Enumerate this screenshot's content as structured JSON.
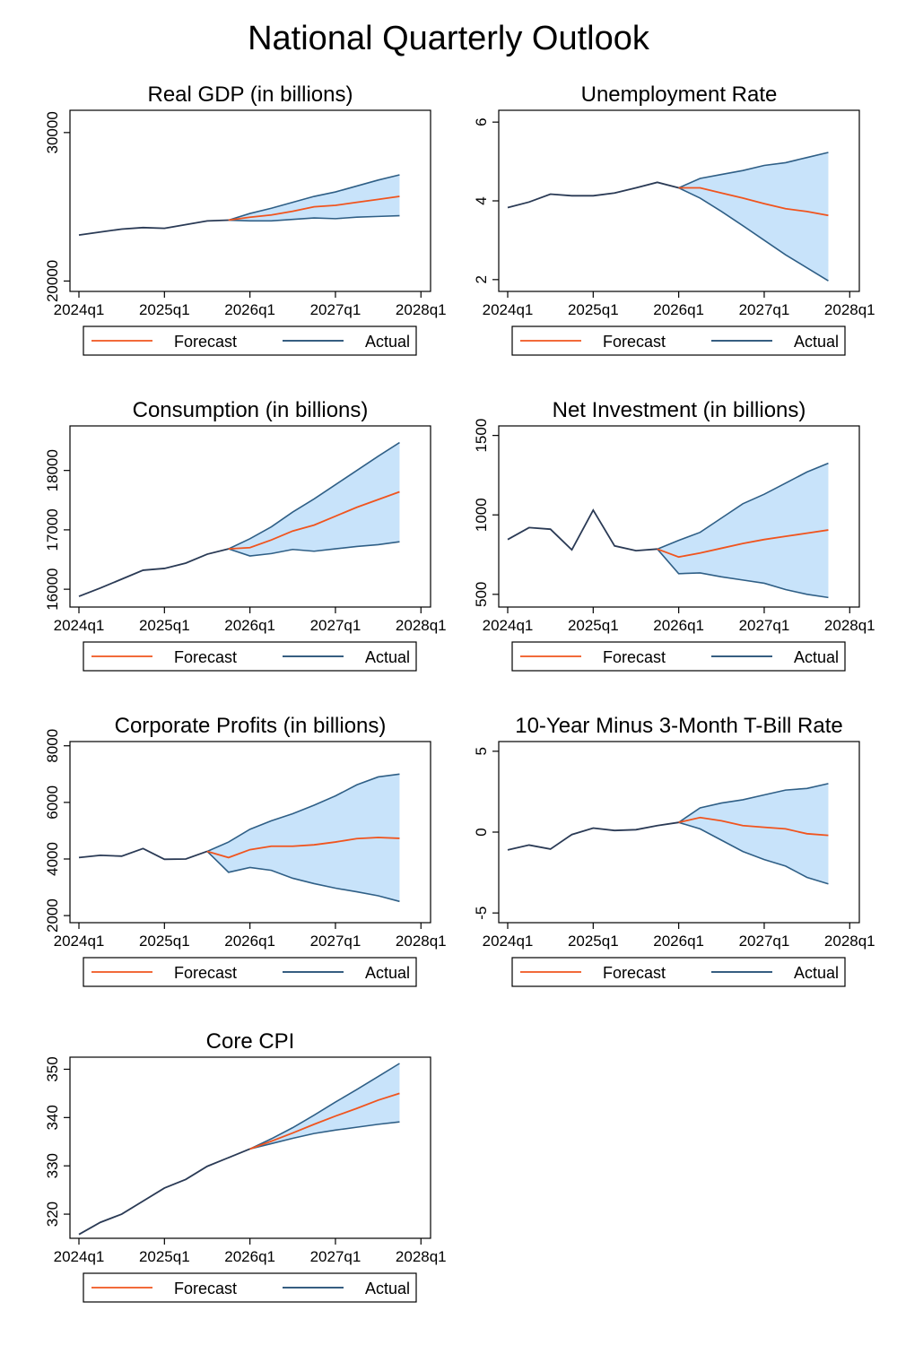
{
  "title": "National Quarterly Outlook",
  "colors": {
    "forecast": "#f0541e",
    "actual": "#1a476f",
    "band": "#c8e3fa",
    "band_edge": "#2f5f86",
    "frame": "#000000"
  },
  "legend": {
    "forecast_label": "Forecast",
    "actual_label": "Actual"
  },
  "chart_data": [
    {
      "type": "line",
      "title": "Real GDP (in billions)",
      "x_ticks": [
        "2024q1",
        "2025q1",
        "2026q1",
        "2027q1",
        "2028q1"
      ],
      "y_ticks": [
        20000,
        30000
      ],
      "ylim": [
        19300,
        31500
      ],
      "history": {
        "x": [
          "2024q1",
          "2024q2",
          "2024q3",
          "2024q4",
          "2025q1",
          "2025q2",
          "2025q3",
          "2025q4"
        ],
        "y": [
          23100,
          23300,
          23500,
          23600,
          23550,
          23800,
          24050,
          24100
        ]
      },
      "forecast": {
        "x": [
          "2025q4",
          "2026q1",
          "2026q2",
          "2026q3",
          "2026q4",
          "2027q1",
          "2027q2",
          "2027q3",
          "2027q4"
        ],
        "y": [
          24100,
          24300,
          24450,
          24700,
          25000,
          25100,
          25300,
          25500,
          25700
        ]
      },
      "upper": [
        24100,
        24550,
        24900,
        25300,
        25700,
        26000,
        26400,
        26800,
        27150
      ],
      "lower": [
        24100,
        24050,
        24050,
        24150,
        24250,
        24200,
        24300,
        24350,
        24400
      ]
    },
    {
      "type": "line",
      "title": "Unemployment Rate",
      "x_ticks": [
        "2024q1",
        "2025q1",
        "2026q1",
        "2027q1",
        "2028q1"
      ],
      "y_ticks": [
        2,
        4,
        6
      ],
      "ylim": [
        1.7,
        6.3
      ],
      "history": {
        "x": [
          "2024q1",
          "2024q2",
          "2024q3",
          "2024q4",
          "2025q1",
          "2025q2",
          "2025q3",
          "2025q4",
          "2026q1"
        ],
        "y": [
          3.83,
          3.97,
          4.17,
          4.13,
          4.13,
          4.2,
          4.33,
          4.47,
          4.33
        ]
      },
      "forecast": {
        "x": [
          "2026q1",
          "2026q2",
          "2026q3",
          "2026q4",
          "2027q1",
          "2027q2",
          "2027q3",
          "2027q4"
        ],
        "y": [
          4.33,
          4.33,
          4.2,
          4.07,
          3.93,
          3.8,
          3.73,
          3.63
        ]
      },
      "upper": [
        4.33,
        4.57,
        4.67,
        4.77,
        4.9,
        4.97,
        5.1,
        5.23
      ],
      "lower": [
        4.33,
        4.07,
        3.73,
        3.37,
        3.0,
        2.63,
        2.3,
        1.97
      ]
    },
    {
      "type": "line",
      "title": "Consumption (in billions)",
      "x_ticks": [
        "2024q1",
        "2025q1",
        "2026q1",
        "2027q1",
        "2028q1"
      ],
      "y_ticks": [
        16000,
        17000,
        18000
      ],
      "ylim": [
        15700,
        18750
      ],
      "history": {
        "x": [
          "2024q1",
          "2024q2",
          "2024q3",
          "2024q4",
          "2025q1",
          "2025q2",
          "2025q3",
          "2025q4"
        ],
        "y": [
          15880,
          16020,
          16170,
          16320,
          16350,
          16440,
          16590,
          16680
        ]
      },
      "forecast": {
        "x": [
          "2025q4",
          "2026q1",
          "2026q2",
          "2026q3",
          "2026q4",
          "2027q1",
          "2027q2",
          "2027q3",
          "2027q4"
        ],
        "y": [
          16680,
          16700,
          16830,
          16980,
          17080,
          17230,
          17380,
          17510,
          17640
        ]
      },
      "upper": [
        16680,
        16850,
        17050,
        17300,
        17520,
        17760,
        18000,
        18240,
        18470
      ],
      "lower": [
        16680,
        16560,
        16600,
        16670,
        16640,
        16680,
        16720,
        16750,
        16800
      ]
    },
    {
      "type": "line",
      "title": "Net Investment (in billions)",
      "x_ticks": [
        "2024q1",
        "2025q1",
        "2026q1",
        "2027q1",
        "2028q1"
      ],
      "y_ticks": [
        500,
        1000,
        1500
      ],
      "ylim": [
        420,
        1560
      ],
      "history": {
        "x": [
          "2024q1",
          "2024q2",
          "2024q3",
          "2024q4",
          "2025q1",
          "2025q2",
          "2025q3",
          "2025q4"
        ],
        "y": [
          845,
          920,
          910,
          780,
          1030,
          805,
          775,
          785
        ]
      },
      "forecast": {
        "x": [
          "2025q4",
          "2026q1",
          "2026q2",
          "2026q3",
          "2026q4",
          "2027q1",
          "2027q2",
          "2027q3",
          "2027q4"
        ],
        "y": [
          785,
          735,
          760,
          790,
          820,
          845,
          865,
          885,
          905
        ]
      },
      "upper": [
        785,
        840,
        890,
        980,
        1070,
        1130,
        1200,
        1270,
        1325
      ],
      "lower": [
        785,
        630,
        635,
        610,
        590,
        570,
        530,
        500,
        480
      ]
    },
    {
      "type": "line",
      "title": "Corporate Profits (in billions)",
      "x_ticks": [
        "2024q1",
        "2025q1",
        "2026q1",
        "2027q1",
        "2028q1"
      ],
      "y_ticks": [
        2000,
        4000,
        6000,
        8000
      ],
      "ylim": [
        1750,
        8150
      ],
      "history": {
        "x": [
          "2024q1",
          "2024q2",
          "2024q3",
          "2024q4",
          "2025q1",
          "2025q2",
          "2025q3"
        ],
        "y": [
          4050,
          4130,
          4100,
          4370,
          3990,
          4000,
          4270
        ]
      },
      "forecast": {
        "x": [
          "2025q3",
          "2025q4",
          "2026q1",
          "2026q2",
          "2026q3",
          "2026q4",
          "2027q1",
          "2027q2",
          "2027q3",
          "2027q4"
        ],
        "y": [
          4270,
          4050,
          4330,
          4450,
          4450,
          4500,
          4600,
          4720,
          4760,
          4730
        ]
      },
      "upper": [
        4270,
        4600,
        5050,
        5350,
        5600,
        5900,
        6230,
        6620,
        6900,
        7000
      ],
      "lower": [
        4270,
        3530,
        3700,
        3600,
        3320,
        3130,
        2970,
        2840,
        2700,
        2500
      ]
    },
    {
      "type": "line",
      "title": "10-Year Minus 3-Month T-Bill Rate",
      "x_ticks": [
        "2024q1",
        "2025q1",
        "2026q1",
        "2027q1",
        "2028q1"
      ],
      "y_ticks": [
        -5,
        0,
        5
      ],
      "ylim": [
        -5.6,
        5.6
      ],
      "history": {
        "x": [
          "2024q1",
          "2024q2",
          "2024q3",
          "2024q4",
          "2025q1",
          "2025q2",
          "2025q3",
          "2025q4",
          "2026q1"
        ],
        "y": [
          -1.1,
          -0.8,
          -1.05,
          -0.15,
          0.25,
          0.1,
          0.15,
          0.4,
          0.6
        ]
      },
      "forecast": {
        "x": [
          "2026q1",
          "2026q2",
          "2026q3",
          "2026q4",
          "2027q1",
          "2027q2",
          "2027q3",
          "2027q4"
        ],
        "y": [
          0.6,
          0.9,
          0.7,
          0.4,
          0.3,
          0.2,
          -0.1,
          -0.2
        ]
      },
      "upper": [
        0.6,
        1.5,
        1.8,
        2.0,
        2.3,
        2.6,
        2.7,
        3.0
      ],
      "lower": [
        0.6,
        0.2,
        -0.5,
        -1.2,
        -1.7,
        -2.1,
        -2.8,
        -3.2
      ]
    },
    {
      "type": "line",
      "title": "Core CPI",
      "x_ticks": [
        "2024q1",
        "2025q1",
        "2026q1",
        "2027q1",
        "2028q1"
      ],
      "y_ticks": [
        320,
        330,
        340,
        350
      ],
      "ylim": [
        315,
        352.5
      ],
      "history": {
        "x": [
          "2024q1",
          "2024q2",
          "2024q3",
          "2024q4",
          "2025q1",
          "2025q2",
          "2025q3",
          "2025q4",
          "2026q1"
        ],
        "y": [
          315.8,
          318.3,
          320.0,
          322.7,
          325.4,
          327.2,
          329.9,
          331.7,
          333.5
        ]
      },
      "forecast": {
        "x": [
          "2026q1",
          "2026q2",
          "2026q3",
          "2026q4",
          "2027q1",
          "2027q2",
          "2027q3",
          "2027q4"
        ],
        "y": [
          333.5,
          335.1,
          336.8,
          338.6,
          340.3,
          341.9,
          343.6,
          345.0
        ]
      },
      "upper": [
        333.5,
        335.6,
        337.9,
        340.5,
        343.2,
        345.8,
        348.5,
        351.2
      ],
      "lower": [
        333.5,
        334.6,
        335.7,
        336.7,
        337.4,
        338.0,
        338.6,
        339.1
      ]
    }
  ]
}
